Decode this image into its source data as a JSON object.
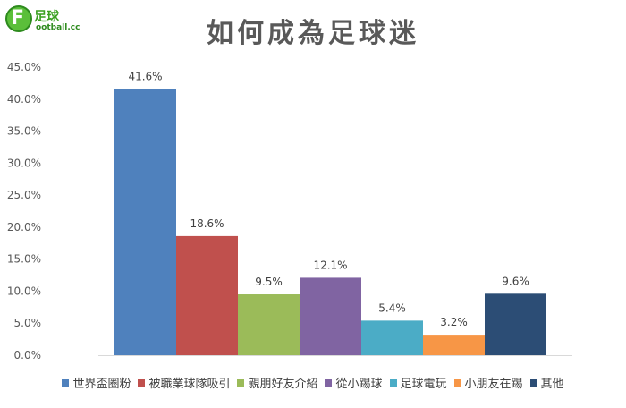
{
  "logo": {
    "mark": "F",
    "text_cn": "足球",
    "text_en": "ootball.cc"
  },
  "chart_data": {
    "type": "bar",
    "title": "如何成為足球迷",
    "categories": [
      "世界盃圈粉",
      "被職業球隊吸引",
      "親朋好友介紹",
      "從小踢球",
      "足球電玩",
      "小朋友在踢",
      "其他"
    ],
    "values": [
      41.6,
      18.6,
      9.5,
      12.1,
      5.4,
      3.2,
      9.6
    ],
    "value_labels": [
      "41.6%",
      "18.6%",
      "9.5%",
      "12.1%",
      "5.4%",
      "3.2%",
      "9.6%"
    ],
    "colors": [
      "#4f81bd",
      "#c0504d",
      "#9bbb59",
      "#8064a2",
      "#4bacc6",
      "#f79646",
      "#2c4d75"
    ],
    "ylim": [
      0,
      45
    ],
    "yticks": [
      "0.0%",
      "5.0%",
      "10.0%",
      "15.0%",
      "20.0%",
      "25.0%",
      "30.0%",
      "35.0%",
      "40.0%",
      "45.0%"
    ],
    "grid": false,
    "legend_position": "bottom"
  }
}
